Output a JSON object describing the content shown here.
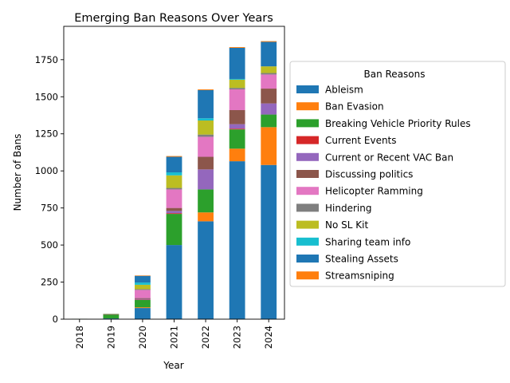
{
  "chart_data": {
    "type": "bar",
    "stacked": true,
    "title": "Emerging Ban Reasons Over Years",
    "xlabel": "Year",
    "ylabel": "Number of Bans",
    "ylim": [
      0,
      1975
    ],
    "yticks": [
      0,
      250,
      500,
      750,
      1000,
      1250,
      1500,
      1750
    ],
    "categories": [
      "2018",
      "2019",
      "2020",
      "2021",
      "2022",
      "2023",
      "2024"
    ],
    "legend": {
      "title": "Ban Reasons",
      "placement": "right"
    },
    "series": [
      {
        "name": "Ableism",
        "color": "#1f77b4",
        "values": [
          0,
          5,
          75,
          500,
          660,
          1065,
          1040
        ]
      },
      {
        "name": "Ban Evasion",
        "color": "#ff7f0e",
        "values": [
          0,
          0,
          5,
          0,
          60,
          85,
          255
        ]
      },
      {
        "name": "Breaking Vehicle Priority Rules",
        "color": "#2ca02c",
        "values": [
          2,
          25,
          50,
          210,
          155,
          130,
          85
        ]
      },
      {
        "name": "Current Events",
        "color": "#d62728",
        "values": [
          0,
          0,
          2,
          5,
          0,
          5,
          0
        ]
      },
      {
        "name": "Current or Recent VAC Ban",
        "color": "#9467bd",
        "values": [
          0,
          0,
          5,
          15,
          135,
          30,
          75
        ]
      },
      {
        "name": "Discussing politics",
        "color": "#8c564b",
        "values": [
          0,
          3,
          5,
          20,
          85,
          95,
          100
        ]
      },
      {
        "name": "Helicopter Ramming",
        "color": "#e377c2",
        "values": [
          0,
          0,
          55,
          125,
          135,
          140,
          95
        ]
      },
      {
        "name": "Hindering",
        "color": "#7f7f7f",
        "values": [
          0,
          1,
          5,
          10,
          15,
          10,
          10
        ]
      },
      {
        "name": "No SL Kit",
        "color": "#bcbd22",
        "values": [
          0,
          2,
          30,
          85,
          95,
          55,
          45
        ]
      },
      {
        "name": "Sharing team info",
        "color": "#17becf",
        "values": [
          0,
          0,
          15,
          20,
          15,
          5,
          0
        ]
      },
      {
        "name": "Stealing Assets",
        "color": "#1f77b4",
        "values": [
          0,
          1,
          45,
          105,
          190,
          210,
          165
        ]
      },
      {
        "name": "Streamsniping",
        "color": "#ff7f0e",
        "values": [
          0,
          0,
          3,
          5,
          5,
          5,
          5
        ]
      }
    ]
  }
}
